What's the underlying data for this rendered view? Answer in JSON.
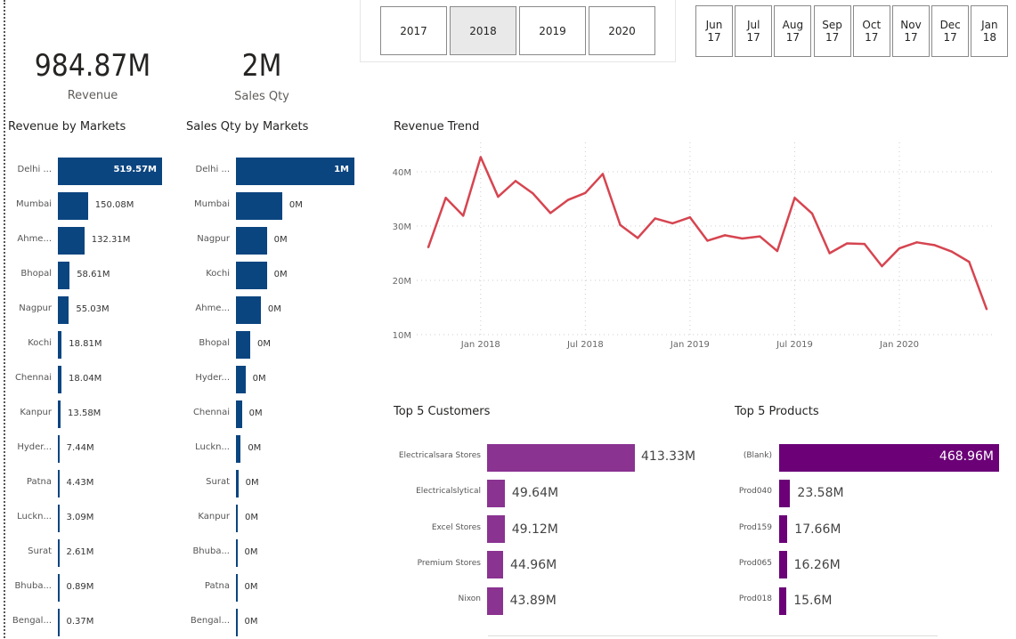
{
  "kpis": {
    "revenue": {
      "value": "984.87M",
      "label": "Revenue"
    },
    "sales_qty": {
      "value": "2M",
      "label": "Sales Qty"
    }
  },
  "year_slicer": {
    "options": [
      "2017",
      "2018",
      "2019",
      "2020"
    ],
    "selected": "2018"
  },
  "month_slicer": {
    "options": [
      {
        "month": "Jun",
        "year": "17"
      },
      {
        "month": "Jul",
        "year": "17"
      },
      {
        "month": "Aug",
        "year": "17"
      },
      {
        "month": "Sep",
        "year": "17"
      },
      {
        "month": "Oct",
        "year": "17"
      },
      {
        "month": "Nov",
        "year": "17"
      },
      {
        "month": "Dec",
        "year": "17"
      },
      {
        "month": "Jan",
        "year": "18"
      }
    ]
  },
  "colors": {
    "market_bar": "#0b4580",
    "trend_line": "#d64550",
    "customer_bar": "#8a3391",
    "product_bar": "#6b0077"
  },
  "chart_data": [
    {
      "type": "bar",
      "orientation": "horizontal",
      "title": "Revenue by Markets",
      "categories": [
        "Delhi ...",
        "Mumbai",
        "Ahme...",
        "Bhopal",
        "Nagpur",
        "Kochi",
        "Chennai",
        "Kanpur",
        "Hyder...",
        "Patna",
        "Luckn...",
        "Surat",
        "Bhuba...",
        "Bengal..."
      ],
      "values": [
        519.57,
        150.08,
        132.31,
        58.61,
        55.03,
        18.81,
        18.04,
        13.58,
        7.44,
        4.43,
        3.09,
        2.61,
        0.89,
        0.37
      ],
      "labels": [
        "519.57M",
        "150.08M",
        "132.31M",
        "58.61M",
        "55.03M",
        "18.81M",
        "18.04M",
        "13.58M",
        "7.44M",
        "4.43M",
        "3.09M",
        "2.61M",
        "0.89M",
        "0.37M"
      ],
      "unit": "M"
    },
    {
      "type": "bar",
      "orientation": "horizontal",
      "title": "Sales Qty by Markets",
      "categories": [
        "Delhi ...",
        "Mumbai",
        "Nagpur",
        "Kochi",
        "Ahme...",
        "Bhopal",
        "Hyder...",
        "Chennai",
        "Luckn...",
        "Surat",
        "Kanpur",
        "Bhuba...",
        "Patna",
        "Bengal..."
      ],
      "values": [
        1.0,
        0.39,
        0.26,
        0.26,
        0.21,
        0.12,
        0.08,
        0.05,
        0.04,
        0.02,
        0.015,
        0.008,
        0.008,
        0.008
      ],
      "labels": [
        "1M",
        "0M",
        "0M",
        "0M",
        "0M",
        "0M",
        "0M",
        "0M",
        "0M",
        "0M",
        "0M",
        "0M",
        "0M",
        "0M"
      ],
      "unit": "M"
    },
    {
      "type": "line",
      "title": "Revenue Trend",
      "x": [
        "2017-10",
        "2017-11",
        "2017-12",
        "2018-01",
        "2018-02",
        "2018-03",
        "2018-04",
        "2018-05",
        "2018-06",
        "2018-07",
        "2018-08",
        "2018-09",
        "2018-10",
        "2018-11",
        "2018-12",
        "2019-01",
        "2019-02",
        "2019-03",
        "2019-04",
        "2019-05",
        "2019-06",
        "2019-07",
        "2019-08",
        "2019-09",
        "2019-10",
        "2019-11",
        "2019-12",
        "2020-01",
        "2020-02",
        "2020-03",
        "2020-04",
        "2020-05",
        "2020-06"
      ],
      "values": [
        26.1,
        35.2,
        31.9,
        42.7,
        35.4,
        38.3,
        36.0,
        32.4,
        34.8,
        36.1,
        39.6,
        30.2,
        27.8,
        31.4,
        30.5,
        31.6,
        27.3,
        28.3,
        27.7,
        28.1,
        25.4,
        35.2,
        32.3,
        25.0,
        26.8,
        26.7,
        22.6,
        25.9,
        27.0,
        26.5,
        25.3,
        23.4,
        14.7
      ],
      "x_ticks": [
        "Jan 2018",
        "Jul 2018",
        "Jan 2019",
        "Jul 2019",
        "Jan 2020"
      ],
      "x_tick_dates": [
        "2018-01",
        "2018-07",
        "2019-01",
        "2019-07",
        "2020-01"
      ],
      "y_ticks": [
        "10M",
        "20M",
        "30M",
        "40M"
      ],
      "y_tick_values": [
        10,
        20,
        30,
        40
      ],
      "unit": "M",
      "grid": true
    },
    {
      "type": "bar",
      "orientation": "horizontal",
      "title": "Top 5 Customers",
      "categories": [
        "Electricalsara Stores",
        "Electricalslytical",
        "Excel Stores",
        "Premium Stores",
        "Nixon"
      ],
      "values": [
        413.33,
        49.64,
        49.12,
        44.96,
        43.89
      ],
      "labels": [
        "413.33M",
        "49.64M",
        "49.12M",
        "44.96M",
        "43.89M"
      ],
      "unit": "M"
    },
    {
      "type": "bar",
      "orientation": "horizontal",
      "title": "Top 5 Products",
      "categories": [
        "(Blank)",
        "Prod040",
        "Prod159",
        "Prod065",
        "Prod018"
      ],
      "values": [
        468.96,
        23.58,
        17.66,
        16.26,
        15.6
      ],
      "labels": [
        "468.96M",
        "23.58M",
        "17.66M",
        "16.26M",
        "15.6M"
      ],
      "unit": "M"
    }
  ]
}
